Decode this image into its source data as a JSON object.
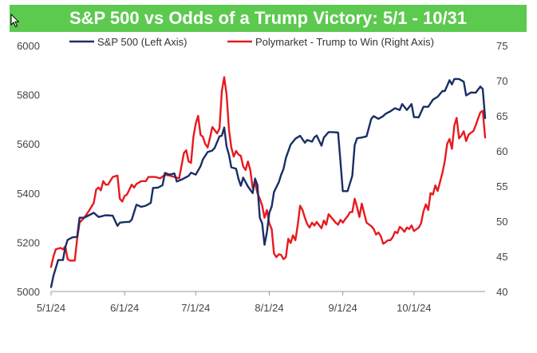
{
  "chart_data": {
    "type": "line",
    "title": "S&P 500 vs Odds of a Trump Victory: 5/1 - 10/31",
    "x_start": "2024-05-01",
    "x_end": "2024-10-31",
    "x_ticks": [
      {
        "label": "5/1/24",
        "day": 0
      },
      {
        "label": "6/1/24",
        "day": 31
      },
      {
        "label": "7/1/24",
        "day": 61
      },
      {
        "label": "8/1/24",
        "day": 92
      },
      {
        "label": "9/1/24",
        "day": 123
      },
      {
        "label": "10/1/24",
        "day": 153
      }
    ],
    "left_axis": {
      "min": 5000,
      "max": 6000,
      "ticks": [
        "5000",
        "5200",
        "5400",
        "5600",
        "5800",
        "6000"
      ]
    },
    "right_axis": {
      "min": 40,
      "max": 75,
      "ticks": [
        "40",
        "45",
        "50",
        "55",
        "60",
        "65",
        "70",
        "75"
      ]
    },
    "series": [
      {
        "name": "S&P 500 (Left Axis)",
        "axis": "left",
        "color": "#1a2e66",
        "points": [
          [
            0,
            5018
          ],
          [
            1,
            5064
          ],
          [
            3,
            5128
          ],
          [
            5,
            5128
          ],
          [
            6,
            5180
          ],
          [
            7,
            5210
          ],
          [
            9,
            5220
          ],
          [
            11,
            5222
          ],
          [
            12,
            5300
          ],
          [
            14,
            5300
          ],
          [
            16,
            5310
          ],
          [
            18,
            5320
          ],
          [
            20,
            5303
          ],
          [
            23,
            5310
          ],
          [
            26,
            5308
          ],
          [
            28,
            5267
          ],
          [
            29,
            5280
          ],
          [
            31,
            5282
          ],
          [
            33,
            5283
          ],
          [
            34,
            5292
          ],
          [
            36,
            5353
          ],
          [
            38,
            5344
          ],
          [
            40,
            5349
          ],
          [
            42,
            5360
          ],
          [
            43,
            5421
          ],
          [
            45,
            5422
          ],
          [
            47,
            5432
          ],
          [
            48,
            5482
          ],
          [
            50,
            5475
          ],
          [
            52,
            5480
          ],
          [
            53,
            5447
          ],
          [
            55,
            5455
          ],
          [
            56,
            5460
          ],
          [
            58,
            5470
          ],
          [
            59,
            5483
          ],
          [
            61,
            5475
          ],
          [
            63,
            5509
          ],
          [
            64,
            5537
          ],
          [
            66,
            5567
          ],
          [
            68,
            5573
          ],
          [
            69,
            5584
          ],
          [
            71,
            5631
          ],
          [
            72,
            5633
          ],
          [
            73,
            5667
          ],
          [
            74,
            5589
          ],
          [
            75,
            5555
          ],
          [
            76,
            5505
          ],
          [
            78,
            5499
          ],
          [
            79,
            5459
          ],
          [
            80,
            5430
          ],
          [
            81,
            5463
          ],
          [
            83,
            5427
          ],
          [
            85,
            5400
          ],
          [
            86,
            5459
          ],
          [
            87,
            5433
          ],
          [
            88,
            5300
          ],
          [
            89,
            5277
          ],
          [
            90,
            5190
          ],
          [
            91,
            5241
          ],
          [
            92,
            5320
          ],
          [
            93,
            5345
          ],
          [
            94,
            5405
          ],
          [
            96,
            5444
          ],
          [
            97,
            5474
          ],
          [
            98,
            5498
          ],
          [
            99,
            5543
          ],
          [
            101,
            5597
          ],
          [
            103,
            5621
          ],
          [
            105,
            5633
          ],
          [
            107,
            5605
          ],
          [
            108,
            5616
          ],
          [
            110,
            5609
          ],
          [
            111,
            5627
          ],
          [
            112,
            5634
          ],
          [
            114,
            5593
          ],
          [
            115,
            5626
          ],
          [
            117,
            5648
          ],
          [
            119,
            5648
          ],
          [
            121,
            5646
          ],
          [
            122,
            5528
          ],
          [
            123,
            5408
          ],
          [
            125,
            5408
          ],
          [
            127,
            5470
          ],
          [
            128,
            5595
          ],
          [
            129,
            5623
          ],
          [
            131,
            5626
          ],
          [
            133,
            5631
          ],
          [
            135,
            5702
          ],
          [
            136,
            5713
          ],
          [
            138,
            5702
          ],
          [
            140,
            5713
          ],
          [
            141,
            5722
          ],
          [
            143,
            5732
          ],
          [
            145,
            5745
          ],
          [
            147,
            5738
          ],
          [
            148,
            5762
          ],
          [
            150,
            5738
          ],
          [
            152,
            5762
          ],
          [
            153,
            5709
          ],
          [
            155,
            5708
          ],
          [
            157,
            5751
          ],
          [
            159,
            5751
          ],
          [
            161,
            5780
          ],
          [
            163,
            5792
          ],
          [
            165,
            5815
          ],
          [
            166,
            5815
          ],
          [
            168,
            5859
          ],
          [
            169,
            5842
          ],
          [
            170,
            5864
          ],
          [
            172,
            5864
          ],
          [
            174,
            5853
          ],
          [
            175,
            5797
          ],
          [
            177,
            5809
          ],
          [
            179,
            5808
          ],
          [
            181,
            5833
          ],
          [
            182,
            5823
          ],
          [
            183,
            5705
          ]
        ]
      },
      {
        "name": "Polymarket - Trump to Win (Right Axis)",
        "axis": "right",
        "color": "#e8191f",
        "points": [
          [
            0,
            43.5
          ],
          [
            1,
            45
          ],
          [
            2,
            46
          ],
          [
            4,
            46.2
          ],
          [
            5,
            46
          ],
          [
            6,
            46.4
          ],
          [
            7,
            44.6
          ],
          [
            8,
            44.4
          ],
          [
            9,
            44.4
          ],
          [
            10,
            44.4
          ],
          [
            11,
            47.5
          ],
          [
            12,
            49.8
          ],
          [
            14,
            50.5
          ],
          [
            16,
            51.5
          ],
          [
            18,
            52.6
          ],
          [
            19,
            54.5
          ],
          [
            20,
            54.8
          ],
          [
            21,
            54.4
          ],
          [
            22,
            55.7
          ],
          [
            23,
            55.2
          ],
          [
            24,
            55.2
          ],
          [
            26,
            56.3
          ],
          [
            28,
            56.5
          ],
          [
            29,
            53.2
          ],
          [
            30,
            52.8
          ],
          [
            31,
            53.6
          ],
          [
            32,
            53.8
          ],
          [
            33,
            54.5
          ],
          [
            34,
            55.2
          ],
          [
            35,
            54.8
          ],
          [
            36,
            55.3
          ],
          [
            38,
            55.7
          ],
          [
            40,
            55.7
          ],
          [
            41,
            56.3
          ],
          [
            42,
            56.3
          ],
          [
            44,
            56.3
          ],
          [
            46,
            56.1
          ],
          [
            48,
            56.6
          ],
          [
            50,
            56.5
          ],
          [
            52,
            56.3
          ],
          [
            54,
            56.1
          ],
          [
            56,
            59.7
          ],
          [
            57,
            60.1
          ],
          [
            58,
            58.5
          ],
          [
            59,
            58.3
          ],
          [
            60,
            62.0
          ],
          [
            61,
            63.9
          ],
          [
            62,
            65.0
          ],
          [
            63,
            62.3
          ],
          [
            64,
            62.0
          ],
          [
            65,
            61.0
          ],
          [
            66,
            60.5
          ],
          [
            67,
            61.9
          ],
          [
            68,
            63.4
          ],
          [
            70,
            62.5
          ],
          [
            71,
            63.2
          ],
          [
            72,
            68.5
          ],
          [
            73,
            70.5
          ],
          [
            74,
            68.0
          ],
          [
            75,
            63.0
          ],
          [
            76,
            60.5
          ],
          [
            77,
            59.2
          ],
          [
            78,
            60.0
          ],
          [
            79,
            59.5
          ],
          [
            80,
            59.3
          ],
          [
            81,
            57.8
          ],
          [
            82,
            57.3
          ],
          [
            83,
            58.5
          ],
          [
            84,
            57.3
          ],
          [
            85,
            54.7
          ],
          [
            86,
            55.5
          ],
          [
            87,
            54.0
          ],
          [
            88,
            53.2
          ],
          [
            89,
            52.2
          ],
          [
            90,
            50.5
          ],
          [
            91,
            51.6
          ],
          [
            92,
            49.7
          ],
          [
            93,
            48.9
          ],
          [
            94,
            45.4
          ],
          [
            95,
            44.9
          ],
          [
            96,
            45.3
          ],
          [
            97,
            45.2
          ],
          [
            98,
            44.6
          ],
          [
            99,
            44.9
          ],
          [
            100,
            47.5
          ],
          [
            101,
            46.9
          ],
          [
            102,
            48.0
          ],
          [
            103,
            47.3
          ],
          [
            104,
            49.5
          ],
          [
            105,
            52.2
          ],
          [
            106,
            51.6
          ],
          [
            107,
            50.5
          ],
          [
            108,
            49.6
          ],
          [
            109,
            49.1
          ],
          [
            110,
            49.8
          ],
          [
            111,
            49.4
          ],
          [
            112,
            49.9
          ],
          [
            114,
            49.0
          ],
          [
            115,
            50.1
          ],
          [
            116,
            49.5
          ],
          [
            117,
            51.0
          ],
          [
            119,
            50.2
          ],
          [
            120,
            49.8
          ],
          [
            121,
            49.5
          ],
          [
            122,
            50.2
          ],
          [
            123,
            49.8
          ],
          [
            124,
            50.3
          ],
          [
            125,
            50.7
          ],
          [
            126,
            51.3
          ],
          [
            127,
            51.3
          ],
          [
            128,
            53.2
          ],
          [
            129,
            52.0
          ],
          [
            130,
            50.6
          ],
          [
            131,
            52.5
          ],
          [
            133,
            49.8
          ],
          [
            135,
            49.3
          ],
          [
            136,
            48.9
          ],
          [
            137,
            48.1
          ],
          [
            138,
            48.4
          ],
          [
            139,
            47.9
          ],
          [
            140,
            46.8
          ],
          [
            141,
            47.0
          ],
          [
            142,
            47.3
          ],
          [
            143,
            47.3
          ],
          [
            144,
            47.7
          ],
          [
            145,
            48.5
          ],
          [
            146,
            48.3
          ],
          [
            147,
            49.2
          ],
          [
            148,
            48.9
          ],
          [
            149,
            48.5
          ],
          [
            150,
            49.1
          ],
          [
            151,
            48.9
          ],
          [
            152,
            49.4
          ],
          [
            153,
            48.6
          ],
          [
            155,
            49.1
          ],
          [
            156,
            49.7
          ],
          [
            157,
            51.4
          ],
          [
            158,
            52.4
          ],
          [
            159,
            51.6
          ],
          [
            160,
            54.0
          ],
          [
            161,
            53.8
          ],
          [
            162,
            55.1
          ],
          [
            163,
            54.3
          ],
          [
            164,
            55.6
          ],
          [
            165,
            56.9
          ],
          [
            166,
            58.6
          ],
          [
            167,
            61.0
          ],
          [
            168,
            61.7
          ],
          [
            169,
            60.3
          ],
          [
            170,
            63.6
          ],
          [
            171,
            64.7
          ],
          [
            172,
            61.8
          ],
          [
            173,
            62.2
          ],
          [
            174,
            62.8
          ],
          [
            175,
            61.4
          ],
          [
            176,
            62.3
          ],
          [
            177,
            62.6
          ],
          [
            178,
            62.8
          ],
          [
            179,
            63.6
          ],
          [
            180,
            64.6
          ],
          [
            181,
            65.5
          ],
          [
            182,
            65.7
          ],
          [
            183,
            61.9
          ]
        ]
      }
    ]
  }
}
